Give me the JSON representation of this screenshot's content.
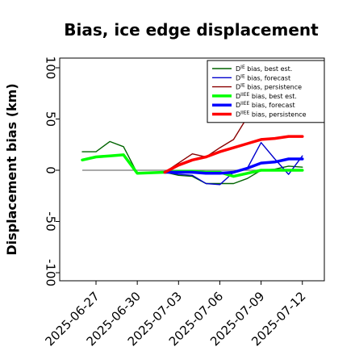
{
  "chart_data": {
    "type": "line",
    "title": "Bias, ice edge displacement",
    "ylabel": "Displacement bias (km)",
    "xlabel": "",
    "ylim": [
      -105,
      105
    ],
    "yticks": [
      -100,
      -50,
      0,
      50,
      100
    ],
    "xticks": [
      "2025-06-27",
      "2025-06-30",
      "2025-07-03",
      "2025-07-06",
      "2025-07-09",
      "2025-07-12"
    ],
    "xtick_colors": [
      "#000000",
      "#000000",
      "#228B22",
      "#000000",
      "#000000",
      "#000000"
    ],
    "reference_line": 0,
    "legend_position": "top-right",
    "series": [
      {
        "name": "D^IE bias, best est.",
        "legend_sup": "IE",
        "legend_rest": " bias, best est.",
        "color": "#006400",
        "width": 1.4,
        "points": [
          [
            "2025-06-26",
            18
          ],
          [
            "2025-06-27",
            18
          ],
          [
            "2025-06-28",
            28
          ],
          [
            "2025-06-29",
            23
          ],
          [
            "2025-06-30",
            -3
          ],
          [
            "2025-07-02",
            -2
          ],
          [
            "2025-07-03",
            -5
          ],
          [
            "2025-07-04",
            -6
          ],
          [
            "2025-07-05",
            -13
          ],
          [
            "2025-07-06",
            -13
          ],
          [
            "2025-07-07",
            -13
          ],
          [
            "2025-07-08",
            -8
          ],
          [
            "2025-07-09",
            0
          ],
          [
            "2025-07-10",
            1
          ],
          [
            "2025-07-11",
            4
          ],
          [
            "2025-07-12",
            3
          ]
        ]
      },
      {
        "name": "D^IE bias, forecast",
        "legend_sup": "IE",
        "legend_rest": " bias, forecast",
        "color": "#0000cd",
        "width": 1.4,
        "points": [
          [
            "2025-07-02",
            -2
          ],
          [
            "2025-07-03",
            -4
          ],
          [
            "2025-07-04",
            -5
          ],
          [
            "2025-07-05",
            -13
          ],
          [
            "2025-07-06",
            -14
          ],
          [
            "2025-07-07",
            -2
          ],
          [
            "2025-07-08",
            2
          ],
          [
            "2025-07-09",
            27
          ],
          [
            "2025-07-10",
            11
          ],
          [
            "2025-07-11",
            -4
          ],
          [
            "2025-07-12",
            14
          ]
        ]
      },
      {
        "name": "D^IE bias, persistence",
        "legend_sup": "IE",
        "legend_rest": " bias, persistence",
        "color": "#8b0000",
        "width": 1.4,
        "points": [
          [
            "2025-07-02",
            -2
          ],
          [
            "2025-07-03",
            7
          ],
          [
            "2025-07-04",
            16
          ],
          [
            "2025-07-05",
            13
          ],
          [
            "2025-07-06",
            22
          ],
          [
            "2025-07-07",
            30
          ],
          [
            "2025-07-08",
            52
          ]
        ]
      },
      {
        "name": "D^IIEE bias, best est.",
        "legend_sup": "IIEE",
        "legend_rest": " bias, best est.",
        "color": "#00ff00",
        "width": 3.5,
        "points": [
          [
            "2025-06-26",
            10
          ],
          [
            "2025-06-27",
            13
          ],
          [
            "2025-06-28",
            14
          ],
          [
            "2025-06-29",
            15
          ],
          [
            "2025-06-30",
            -3
          ],
          [
            "2025-07-02",
            -2
          ],
          [
            "2025-07-03",
            -1
          ],
          [
            "2025-07-04",
            -1
          ],
          [
            "2025-07-05",
            -2
          ],
          [
            "2025-07-06",
            -2
          ],
          [
            "2025-07-07",
            -6
          ],
          [
            "2025-07-08",
            -3
          ],
          [
            "2025-07-09",
            0
          ],
          [
            "2025-07-10",
            0
          ],
          [
            "2025-07-11",
            0
          ],
          [
            "2025-07-12",
            0
          ]
        ]
      },
      {
        "name": "D^IIEE bias, forecast",
        "legend_sup": "IIEE",
        "legend_rest": " bias, forecast",
        "color": "#0000ff",
        "width": 3.5,
        "points": [
          [
            "2025-07-02",
            -2
          ],
          [
            "2025-07-03",
            -2
          ],
          [
            "2025-07-04",
            -2
          ],
          [
            "2025-07-05",
            -3
          ],
          [
            "2025-07-06",
            -3
          ],
          [
            "2025-07-07",
            -2
          ],
          [
            "2025-07-08",
            2
          ],
          [
            "2025-07-09",
            7
          ],
          [
            "2025-07-10",
            8
          ],
          [
            "2025-07-11",
            11
          ],
          [
            "2025-07-12",
            11
          ]
        ]
      },
      {
        "name": "D^IIEE bias, persistence",
        "legend_sup": "IIEE",
        "legend_rest": " bias, persistence",
        "color": "#ff0000",
        "width": 3.5,
        "points": [
          [
            "2025-07-02",
            -2
          ],
          [
            "2025-07-03",
            5
          ],
          [
            "2025-07-04",
            10
          ],
          [
            "2025-07-05",
            13
          ],
          [
            "2025-07-06",
            18
          ],
          [
            "2025-07-07",
            22
          ],
          [
            "2025-07-08",
            26
          ],
          [
            "2025-07-09",
            30
          ],
          [
            "2025-07-10",
            31
          ],
          [
            "2025-07-11",
            33
          ],
          [
            "2025-07-12",
            33
          ]
        ]
      }
    ]
  }
}
